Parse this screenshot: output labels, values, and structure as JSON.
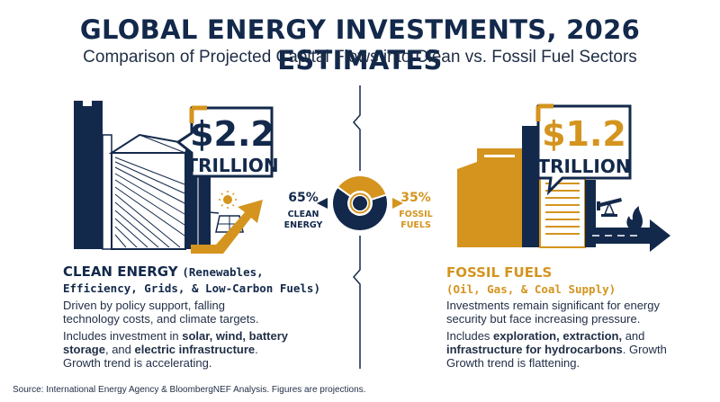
{
  "title": "GLOBAL ENERGY INVESTMENTS, 2026 ESTIMATES",
  "subtitle": "Comparison of Projected Capital Flows into Clean vs. Fossil Fuel Sectors",
  "colors": {
    "navy": "#13294b",
    "gold": "#d4941e",
    "text": "#1f2d45"
  },
  "clean": {
    "amount": "$2.2",
    "unit": "TRILLION",
    "heading": "CLEAN ENERGY",
    "heading_detail_1": "(Renewables,",
    "heading_detail_2": "Efficiency, Grids, & Low-Carbon Fuels)",
    "desc_1": "Driven by policy support, falling technology costs, and climate targets.",
    "desc_2_pre": "Includes investment in ",
    "desc_2_bold_1": "solar, wind, battery storage",
    "desc_2_mid": ", and ",
    "desc_2_bold_2": "electric infrastructure",
    "desc_2_post": ". Growth trend is accelerating.",
    "icons": [
      "sun-icon",
      "wind-turbine-icon",
      "solar-panel-icon",
      "growth-arrow-icon"
    ]
  },
  "fossil": {
    "amount": "$1.2",
    "unit": "TRILLION",
    "heading": "FOSSIL FUELS",
    "heading_detail": "(Oil, Gas, & Coal Supply)",
    "desc_1": "Investments remain significant for energy security but face increasing pressure.",
    "desc_2_pre": "Includes ",
    "desc_2_bold_1": "exploration, extraction,",
    "desc_2_mid": " and ",
    "desc_2_bold_2": "infrastructure for hydrocarbons",
    "desc_2_post": ". Growth Growth trend is flattening.",
    "icons": [
      "oil-pump-icon",
      "flame-icon",
      "flat-arrow-icon"
    ]
  },
  "chart_data": {
    "type": "pie",
    "title": "GLOBAL ENERGY INVESTMENTS, 2026 ESTIMATES",
    "subtitle": "Comparison of Projected Capital Flows into Clean vs. Fossil Fuel Sectors",
    "labels": [
      "CLEAN ENERGY",
      "FOSSIL FUELS"
    ],
    "values": [
      65,
      35
    ],
    "value_labels": [
      "65%",
      "35%"
    ],
    "totals": [
      {
        "name": "CLEAN ENERGY",
        "value": 2.2,
        "label": "$2.2 TRILLION"
      },
      {
        "name": "FOSSIL FUELS",
        "value": 1.2,
        "label": "$1.2 TRILLION"
      }
    ],
    "colors": [
      "#13294b",
      "#d4941e"
    ]
  },
  "source": "Source: International Energy Agency & BloombergNEF Analysis. Figures are projections."
}
